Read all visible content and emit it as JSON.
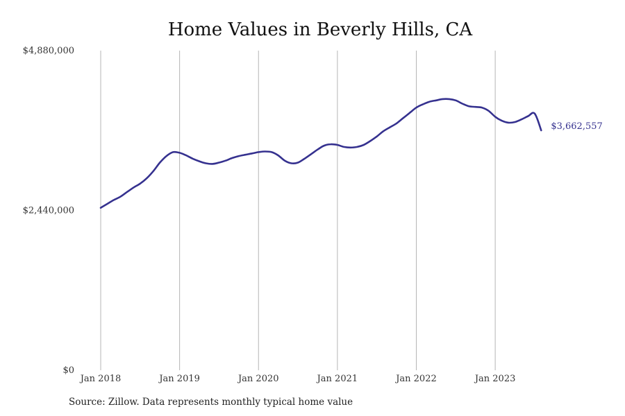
{
  "chart_data": {
    "type": "line",
    "title": "Home Values in Beverly Hills, CA",
    "xlabel": "",
    "ylabel": "",
    "ylim": [
      0,
      4880000
    ],
    "y_ticks": [
      {
        "value": 0,
        "label": "$0"
      },
      {
        "value": 2440000,
        "label": "$2,440,000"
      },
      {
        "value": 4880000,
        "label": "$4,880,000"
      }
    ],
    "x_ticks": [
      {
        "value": 2018,
        "label": "Jan 2018"
      },
      {
        "value": 2019,
        "label": "Jan 2019"
      },
      {
        "value": 2020,
        "label": "Jan 2020"
      },
      {
        "value": 2021,
        "label": "Jan 2021"
      },
      {
        "value": 2022,
        "label": "Jan 2022"
      },
      {
        "value": 2023,
        "label": "Jan 2023"
      }
    ],
    "xlim": [
      2018,
      2023.58
    ],
    "vertical_grid": true,
    "color": "#35318f",
    "end_label": "$3,662,557",
    "series": [
      {
        "x": [
          2018.0,
          2018.083,
          2018.167,
          2018.25,
          2018.333,
          2018.417,
          2018.5,
          2018.583,
          2018.667,
          2018.75,
          2018.833,
          2018.917,
          2019.0,
          2019.083,
          2019.167,
          2019.25,
          2019.333,
          2019.417,
          2019.5,
          2019.583,
          2019.667,
          2019.75,
          2019.833,
          2019.917,
          2020.0,
          2020.083,
          2020.167,
          2020.25,
          2020.333,
          2020.417,
          2020.5,
          2020.583,
          2020.667,
          2020.75,
          2020.833,
          2020.917,
          2021.0,
          2021.083,
          2021.167,
          2021.25,
          2021.333,
          2021.417,
          2021.5,
          2021.583,
          2021.667,
          2021.75,
          2021.833,
          2021.917,
          2022.0,
          2022.083,
          2022.167,
          2022.25,
          2022.333,
          2022.417,
          2022.5,
          2022.583,
          2022.667,
          2022.75,
          2022.833,
          2022.917,
          2023.0,
          2023.083,
          2023.167,
          2023.25,
          2023.333,
          2023.417,
          2023.5,
          2023.583
        ],
        "values": [
          2480000,
          2540000,
          2600000,
          2650000,
          2720000,
          2790000,
          2850000,
          2930000,
          3040000,
          3170000,
          3270000,
          3330000,
          3320000,
          3280000,
          3230000,
          3190000,
          3160000,
          3150000,
          3170000,
          3200000,
          3240000,
          3270000,
          3290000,
          3310000,
          3330000,
          3340000,
          3330000,
          3280000,
          3200000,
          3160000,
          3170000,
          3230000,
          3300000,
          3370000,
          3430000,
          3450000,
          3440000,
          3410000,
          3400000,
          3410000,
          3440000,
          3500000,
          3570000,
          3650000,
          3710000,
          3770000,
          3850000,
          3930000,
          4010000,
          4060000,
          4100000,
          4120000,
          4140000,
          4140000,
          4120000,
          4070000,
          4030000,
          4020000,
          4010000,
          3960000,
          3870000,
          3810000,
          3780000,
          3790000,
          3830000,
          3880000,
          3920000,
          3662557
        ]
      }
    ]
  },
  "footer": {
    "source": "Source: Zillow. Data represents monthly typical home value"
  }
}
